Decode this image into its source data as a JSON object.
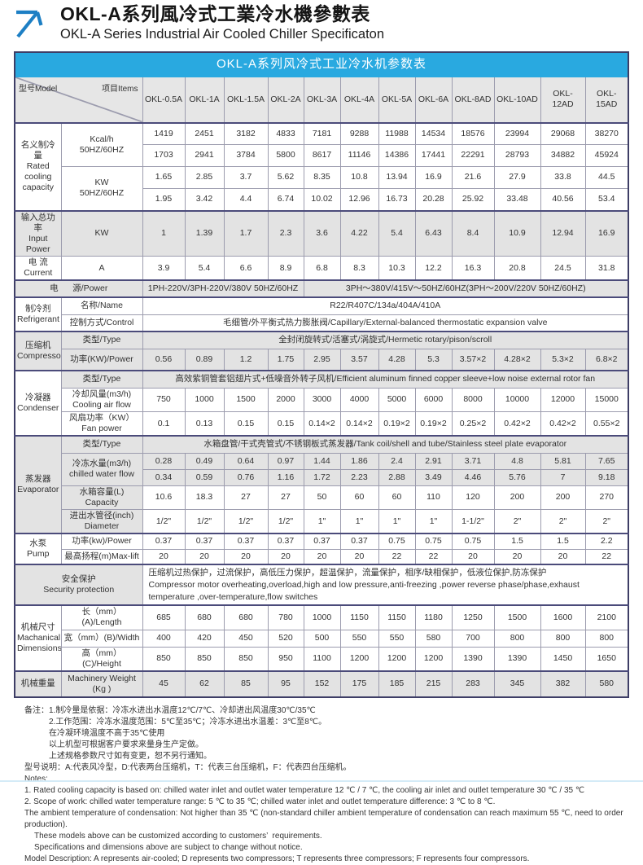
{
  "page": {
    "title_cn": "OKL-A系列風冷式工業冷水機參數表",
    "title_en": "OKL-A Series Industrial Air Cooled Chiller Specificaton"
  },
  "colors": {
    "accent": "#29a9e0",
    "arrow": "#1d7fc4",
    "row_gray": "#e3e3e3"
  },
  "table": {
    "caption": "OKL-A系列风冷式工业冷水机参数表",
    "corner": {
      "model": "型号Model",
      "items": "项目Items"
    },
    "models": [
      "OKL-0.5A",
      "OKL-1A",
      "OKL-1.5A",
      "OKL-2A",
      "OKL-3A",
      "OKL-4A",
      "OKL-5A",
      "OKL-6A",
      "OKL-8AD",
      "OKL-10AD",
      "OKL-12AD",
      "OKL-15AD"
    ],
    "labels": {
      "rated": "名义制冷量\nRated\ncooling\ncapacity",
      "kcal": "Kcal/h\n50HZ/60HZ",
      "kw": "KW\n50HZ/60HZ",
      "input_power": "输入总功率\nInput Power",
      "input_power_unit": "KW",
      "current": "电 流\nCurrent",
      "current_unit": "A",
      "power_supply": "电      源/Power",
      "refrigerant": "制冷剂\nRefrigerant",
      "name": "名称/Name",
      "control": "控制方式/Control",
      "compressor": "压缩机\nCompressor",
      "type": "类型/Type",
      "comp_power": "功率(KW)/Power",
      "condenser": "冷凝器\nCondenser",
      "air_flow": "冷却风量(m3/h)\nCooling air flow",
      "fan_power": "风扇功率（KW）\nFan power",
      "evaporator": "蒸发器\nEvaporator",
      "chilled_flow": "冷冻水量(m3/h)\nchilled water flow",
      "capacity": "水箱容量(L)\nCapacity",
      "diameter": "进出水管径(inch)\nDiameter",
      "pump": "水泵\nPump",
      "pump_power": "功率(kw)/Power",
      "max_lift": "最高扬程(m)Max-lift",
      "security": "安全保护\nSecurity protection",
      "dimensions": "机械尺寸\nMachanical\nDimensions",
      "length": "长（mm）(A)/Length",
      "width": "宽（mm）(B)/Width",
      "height": "高（mm）(C)/Height",
      "weight_cn": "机械重量",
      "weight_en": "Machinery Weight\n(Kg )"
    },
    "rows": {
      "kcal50": [
        1419,
        2451,
        3182,
        4833,
        7181,
        9288,
        11988,
        14534,
        18576,
        23994,
        29068,
        38270
      ],
      "kcal60": [
        1703,
        2941,
        3784,
        5800,
        8617,
        11146,
        14386,
        17441,
        22291,
        28793,
        34882,
        45924
      ],
      "kw50": [
        1.65,
        2.85,
        3.7,
        5.62,
        8.35,
        10.8,
        13.94,
        16.9,
        21.6,
        27.9,
        33.8,
        44.5
      ],
      "kw60": [
        1.95,
        3.42,
        4.4,
        6.74,
        10.02,
        12.96,
        16.73,
        20.28,
        25.92,
        33.48,
        40.56,
        53.4
      ],
      "input_power": [
        1,
        1.39,
        1.7,
        2.3,
        3.6,
        4.22,
        5.4,
        6.43,
        8.4,
        10.9,
        12.94,
        16.9
      ],
      "current": [
        3.9,
        5.4,
        6.6,
        8.9,
        6.8,
        8.3,
        10.3,
        12.2,
        16.3,
        20.8,
        24.5,
        31.8
      ],
      "comp_power": [
        "0.56",
        "0.89",
        "1.2",
        "1.75",
        "2.95",
        "3.57",
        "4.28",
        "5.3",
        "3.57×2",
        "4.28×2",
        "5.3×2",
        "6.8×2"
      ],
      "air_flow": [
        750,
        1000,
        1500,
        2000,
        3000,
        4000,
        5000,
        6000,
        8000,
        10000,
        12000,
        15000
      ],
      "fan_power": [
        "0.1",
        "0.13",
        "0.15",
        "0.15",
        "0.14×2",
        "0.14×2",
        "0.19×2",
        "0.19×2",
        "0.25×2",
        "0.42×2",
        "0.42×2",
        "0.55×2"
      ],
      "flow50": [
        0.28,
        0.49,
        0.64,
        0.97,
        1.44,
        1.86,
        2.4,
        2.91,
        3.71,
        4.8,
        5.81,
        7.65
      ],
      "flow60": [
        0.34,
        0.59,
        0.76,
        1.16,
        1.72,
        2.23,
        2.88,
        3.49,
        4.46,
        5.76,
        7,
        9.18
      ],
      "capacity": [
        10.6,
        18.3,
        27,
        27,
        50,
        60,
        60,
        110,
        120,
        200,
        200,
        270
      ],
      "diameter": [
        "1/2\"",
        "1/2\"",
        "1/2\"",
        "1/2\"",
        "1\"",
        "1\"",
        "1\"",
        "1\"",
        "1-1/2\"",
        "2\"",
        "2\"",
        "2\""
      ],
      "pump_power": [
        0.37,
        0.37,
        0.37,
        0.37,
        0.37,
        0.37,
        0.75,
        0.75,
        0.75,
        1.5,
        1.5,
        2.2
      ],
      "max_lift": [
        20,
        20,
        20,
        20,
        20,
        20,
        22,
        22,
        20,
        20,
        20,
        22
      ],
      "length": [
        685,
        680,
        680,
        780,
        1000,
        1150,
        1150,
        1180,
        1250,
        1500,
        1600,
        2100
      ],
      "width": [
        400,
        420,
        450,
        520,
        500,
        550,
        550,
        580,
        700,
        800,
        800,
        800
      ],
      "height": [
        850,
        850,
        850,
        950,
        1100,
        1200,
        1200,
        1200,
        1390,
        1390,
        1450,
        1650
      ],
      "weight": [
        45,
        62,
        85,
        95,
        152,
        175,
        185,
        215,
        283,
        345,
        382,
        580
      ]
    },
    "power_supply": {
      "left": "1PH-220V/3PH-220V/380V 50HZ/60HZ",
      "right": "3PH～380V/415V～50HZ/60HZ(3PH～200V/220V  50HZ/60HZ)"
    },
    "refrigerant": {
      "name": "R22/R407C/134a/404A/410A",
      "control": "毛细管/外平衡式热力膨胀阀/Capillary/External-balanced thermostatic expansion valve"
    },
    "types": {
      "compressor": "全封闭旋转式/活塞式/涡旋式/Hermetic rotary/pison/scroll",
      "condenser": "高效紫铜管套铝翅片式+低噪音外转子风机/Efficient aluminum finned copper sleeve+low noise external rotor fan",
      "evaporator": "水箱盘管/干式壳管式/不锈钢板式蒸发器/Tank coil/shell and tube/Stainless steel plate evaporator"
    },
    "security": {
      "cn": "压缩机过热保护，过流保护，高低压力保护，超温保护，流量保护，相序/缺相保护，低液位保护,防冻保护",
      "en": "Compressor motor overheating,overload,high and low pressure,anti-freezing ,power reverse phase/phase,exhaust temperature ,over-temperature,flow switches"
    }
  },
  "notes": {
    "cn0": "备注：1.制冷量是依据：冷冻水进出水温度12℃/7℃、冷却进出风温度30℃/35℃",
    "cn1": "2.工作范围：冷冻水温度范围：5℃至35℃；冷冻水进出水温差：3℃至8℃。",
    "cn2": "在冷凝环境温度不高于35℃使用",
    "cn3": "以上机型可根据客户要求来量身生产定做。",
    "cn4": "上述规格参数尺寸如有变更，恕不另行通知。",
    "cn5": "型号说明：A:代表风冷型，D:代表两台压缩机，T：代表三台压缩机，F：代表四台压缩机。",
    "en0": "Notes:",
    "en1": "1. Rated cooling capacity is based on: chilled water inlet and outlet water temperature 12 ℃ / 7 ℃, the cooling air inlet and outlet temperature 30 ℃ / 35 ℃",
    "en2": "2. Scope of work: chilled water temperature range: 5 ℃ to 35 ℃; chilled water inlet and outlet temperature difference: 3 ℃ to 8 ℃.",
    "en3": "The ambient temperature of condensation: Not higher than 35 ℃ (non-standard chiller ambient temperature of condensation can reach maximum 55 ℃, need to order production).",
    "en4": "These models above can be customized according to customers’  requirements.",
    "en5": "Specifications and dimensions above are subject to change without notice.",
    "en6": "Model Description: A represents air-cooled; D represents two compressors; T represents three compressors; F represents four compressors."
  }
}
